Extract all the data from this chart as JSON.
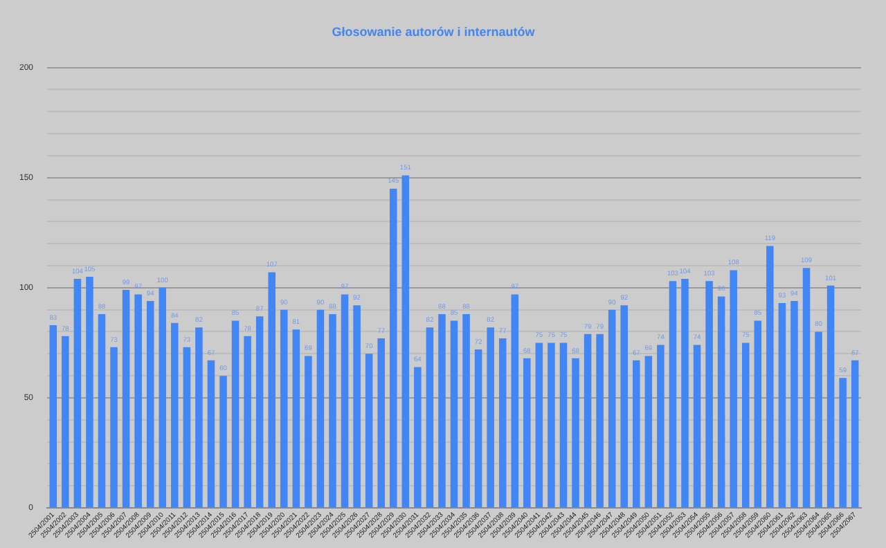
{
  "chart_data": {
    "type": "bar",
    "title": "Głosowanie autorów i internautów",
    "categories": [
      "2504/2001",
      "2504/2002",
      "2504/2003",
      "2504/2004",
      "2504/2005",
      "2504/2006",
      "2504/2007",
      "2504/2008",
      "2504/2009",
      "2504/2010",
      "2504/2011",
      "2504/2012",
      "2504/2013",
      "2504/2014",
      "2504/2015",
      "2504/2016",
      "2504/2017",
      "2504/2018",
      "2504/2019",
      "2504/2020",
      "2504/2021",
      "2504/2022",
      "2504/2023",
      "2504/2024",
      "2504/2025",
      "2504/2026",
      "2504/2027",
      "2504/2028",
      "2504/2029",
      "2504/2030",
      "2504/2031",
      "2504/2032",
      "2504/2033",
      "2504/2034",
      "2504/2035",
      "2504/2036",
      "2504/2037",
      "2504/2038",
      "2504/2039",
      "2504/2040",
      "2504/2041",
      "2504/2042",
      "2504/2043",
      "2504/2044",
      "2504/2045",
      "2504/2046",
      "2504/2047",
      "2504/2048",
      "2504/2049",
      "2504/2050",
      "2504/2051",
      "2504/2052",
      "2504/2053",
      "2504/2054",
      "2504/2055",
      "2504/2056",
      "2504/2057",
      "2504/2058",
      "2504/2059",
      "2504/2060",
      "2504/2061",
      "2504/2062",
      "2504/2063",
      "2504/2064",
      "2504/2065",
      "2504/2066",
      "2504/2067"
    ],
    "values": [
      83,
      78,
      104,
      105,
      88,
      73,
      99,
      97,
      94,
      100,
      84,
      73,
      82,
      67,
      60,
      85,
      78,
      87,
      107,
      90,
      81,
      69,
      90,
      88,
      97,
      92,
      70,
      77,
      145,
      151,
      64,
      82,
      88,
      85,
      88,
      72,
      82,
      77,
      97,
      68,
      75,
      75,
      75,
      68,
      79,
      79,
      90,
      92,
      67,
      69,
      74,
      103,
      104,
      74,
      103,
      96,
      108,
      75,
      85,
      119,
      93,
      94,
      109,
      80,
      101,
      59,
      67
    ],
    "color": "#4285f4",
    "ylim": [
      0,
      200
    ],
    "yticks": [
      0,
      {
        "value": 10,
        "label": null
      },
      {
        "value": 20,
        "label": null
      },
      {
        "value": 30,
        "label": null
      },
      {
        "value": 40,
        "label": null
      },
      50,
      {
        "value": 60,
        "label": null
      },
      {
        "value": 70,
        "label": null
      },
      {
        "value": 80,
        "label": null
      },
      {
        "value": 90,
        "label": null
      },
      100,
      {
        "value": 110,
        "label": null
      },
      {
        "value": 120,
        "label": null
      },
      {
        "value": 130,
        "label": null
      },
      {
        "value": 140,
        "label": null
      },
      150,
      {
        "value": 160,
        "label": null
      },
      {
        "value": 170,
        "label": null
      },
      {
        "value": 180,
        "label": null
      },
      {
        "value": 190,
        "label": null
      },
      200
    ],
    "grid": "y",
    "data_labels": true,
    "legend": false
  }
}
